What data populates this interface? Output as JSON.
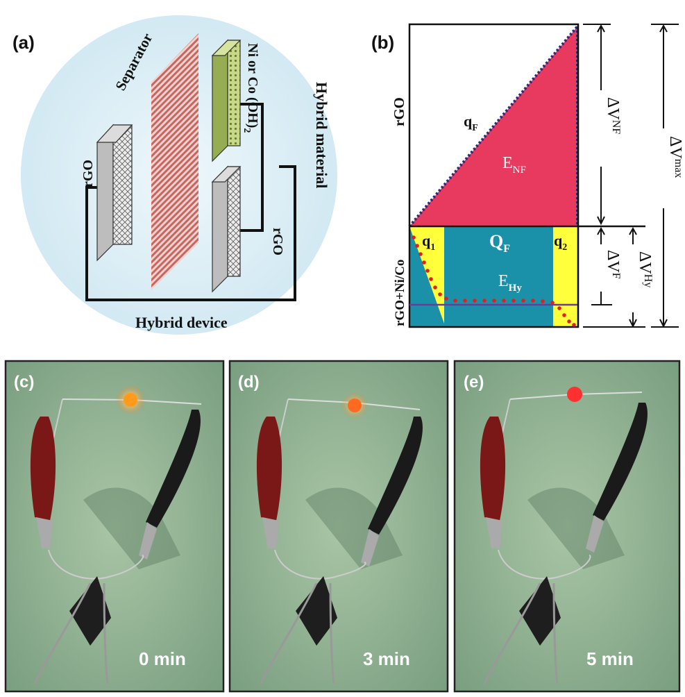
{
  "panel_a": {
    "tag": "(a)",
    "labels": {
      "separator": "Separator",
      "rgo_left": "rGO",
      "ni_co_base": "Ni or Co (OH)",
      "ni_co_sub": "2",
      "hybrid_material": "Hybrid material",
      "rgo_right": "rGO",
      "hybrid_device": "Hybrid device"
    },
    "colors": {
      "background": "#d9ecf4",
      "separator": "#c9645e",
      "active_material": "#b9cc7a",
      "electrode": "#e8e8e8"
    }
  },
  "panel_b": {
    "tag": "(b)",
    "labels": {
      "rgo": "rGO",
      "rgo_ni_co": "rGO+Ni/Co",
      "qF_base": "q",
      "qF_sub": "F",
      "ENF_base": "E",
      "ENF_sub": "NF",
      "q1_base": "q",
      "q1_sub": "1",
      "QF_base": "Q",
      "QF_sub": "F",
      "q2_base": "q",
      "q2_sub": "2",
      "EHy_base": "E",
      "EHy_sub": "Hy",
      "dVNF_base": "ΔV",
      "dVNF_sub": "NF",
      "dVF_base": "ΔV",
      "dVF_sub": "F",
      "dVHy_base": "ΔV",
      "dVHy_sub": "Hy",
      "dVmax_base": "ΔV",
      "dVmax_sub": "max"
    },
    "colors": {
      "triangle": "#e83a5e",
      "rectangle": "#1a91a9",
      "corners": "#ffff3c",
      "dots": "#e02020",
      "dotted_line": "#2a2a7a",
      "baseline": "#6a3c9a"
    }
  },
  "photos": [
    {
      "tag": "(c)",
      "time": "0 min",
      "led_color": "#ff9a1a"
    },
    {
      "tag": "(d)",
      "time": "3 min",
      "led_color": "#ff6a20"
    },
    {
      "tag": "(e)",
      "time": "5 min",
      "led_color": "#ff3030"
    }
  ]
}
